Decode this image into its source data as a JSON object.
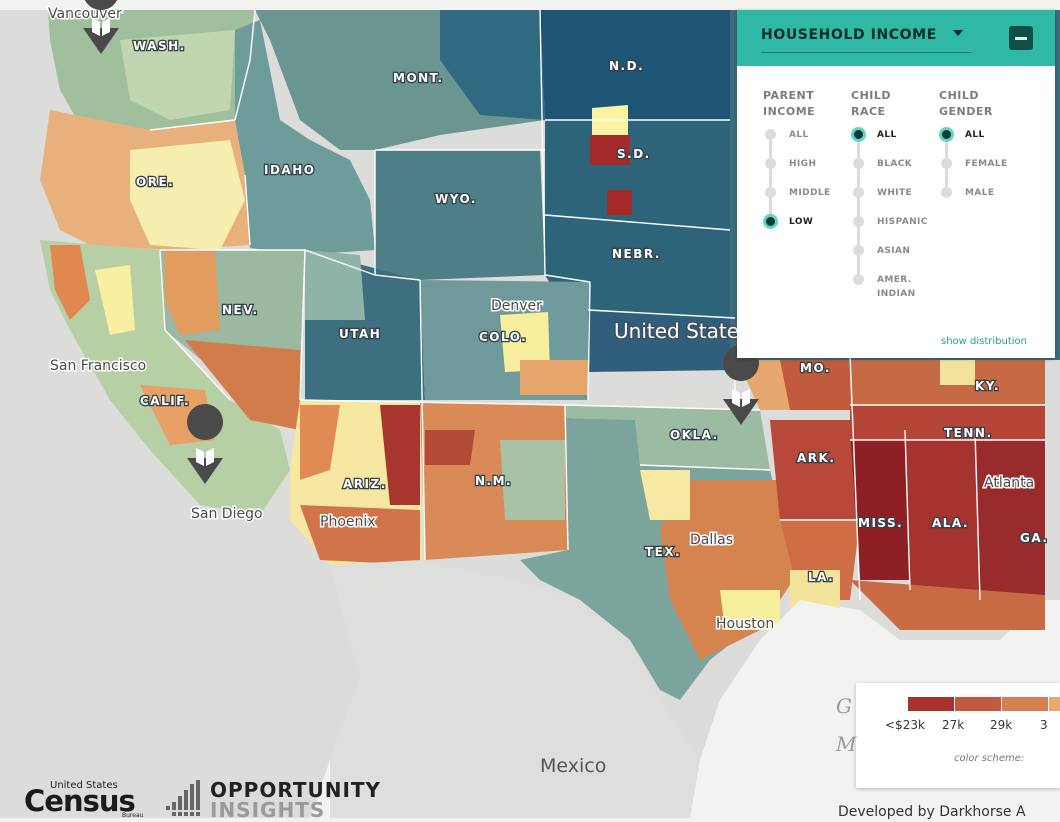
{
  "map": {
    "state_labels": [
      "WASH.",
      "MONT.",
      "N.D.",
      "ORE.",
      "IDAHO",
      "WYO.",
      "S.D.",
      "NEBR.",
      "NEV.",
      "UTAH",
      "COLO.",
      "CALIF.",
      "ARIZ.",
      "N.M.",
      "OKLA.",
      "TEX.",
      "ARK.",
      "MO.",
      "KY.",
      "TENN.",
      "MISS.",
      "ALA.",
      "GA.",
      "LA."
    ],
    "city_labels": [
      "Vancouver",
      "San Francisco",
      "San Diego",
      "Phoenix",
      "Denver",
      "Dallas",
      "Houston",
      "Atlanta"
    ],
    "country_label": "United States",
    "mexico_label": "Mexico",
    "pins": [
      "book-pin-seattle",
      "book-pin-san-diego",
      "book-pin-oklahoma"
    ]
  },
  "panel": {
    "metric": "HOUSEHOLD INCOME",
    "columns": [
      {
        "title_line1": "PARENT",
        "title_line2": "INCOME",
        "options": [
          "ALL",
          "HIGH",
          "MIDDLE",
          "LOW"
        ],
        "selected": "LOW"
      },
      {
        "title_line1": "CHILD",
        "title_line2": "RACE",
        "options": [
          "ALL",
          "BLACK",
          "WHITE",
          "HISPANIC",
          "ASIAN",
          "AMER. INDIAN"
        ],
        "selected": "ALL"
      },
      {
        "title_line1": "CHILD",
        "title_line2": "GENDER",
        "options": [
          "ALL",
          "FEMALE",
          "MALE"
        ],
        "selected": "ALL"
      }
    ],
    "show_distribution": "show distribution"
  },
  "legend": {
    "ticks": [
      "<$23k",
      "27k",
      "29k",
      "3"
    ],
    "colors": [
      "#a7312d",
      "#c05a3c",
      "#d58050",
      "#e9a66d"
    ],
    "color_scheme_label": "color scheme:",
    "faint_letters": [
      "G",
      "M"
    ]
  },
  "footer": {
    "census_top": "United States",
    "census_main": "Census",
    "census_bureau": "Bureau",
    "oi_line1": "OPPORTUNITY",
    "oi_line2": "INSIGHTS",
    "developed": "Developed by Darkhorse A"
  },
  "colors": {
    "teal_dark": "#1d4f6e",
    "teal": "#4b7a86",
    "green_gray": "#9dbca3",
    "yellow": "#fbf3a4",
    "orange": "#e39a5f",
    "red": "#a8302b",
    "accent": "#2fb8a4"
  }
}
